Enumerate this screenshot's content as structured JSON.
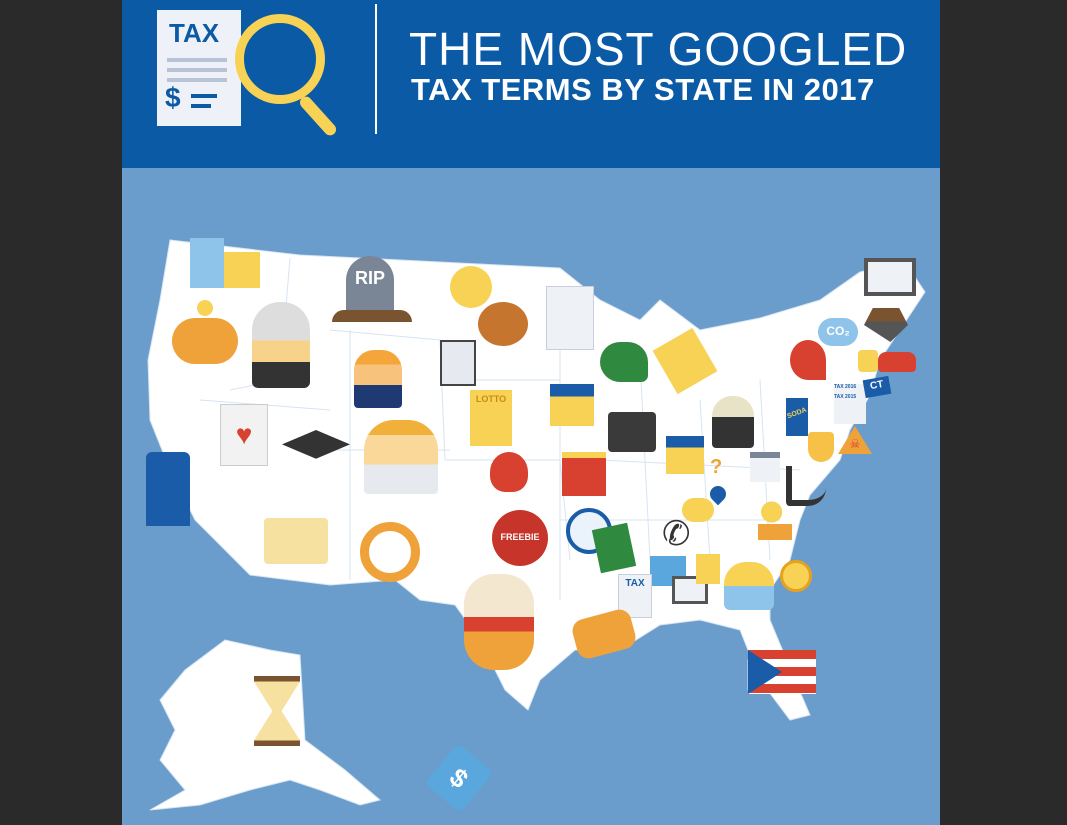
{
  "header": {
    "title_line1": "THE MOST GOOGLED",
    "title_line2": "TAX TERMS BY STATE IN 2017",
    "logo_doc_text": "TAX",
    "logo_doc_symbol": "$"
  },
  "colors": {
    "header_bg": "#0b5aa6",
    "map_bg": "#6a9dcb",
    "land": "#ffffff",
    "accent_yellow": "#f7d254",
    "page_bg": "#2a2a2a"
  },
  "icons": {
    "tombstone": "RIP",
    "lotto": "LOTTO",
    "freebie": "FREEBIE",
    "soda": "SODA",
    "co2": "CO₂",
    "ct_flag": "CT",
    "tax_2016": "TAX 2016",
    "tax_2015": "TAX 2015",
    "tax_doc": "TAX",
    "dollar": "$",
    "question": "?"
  }
}
